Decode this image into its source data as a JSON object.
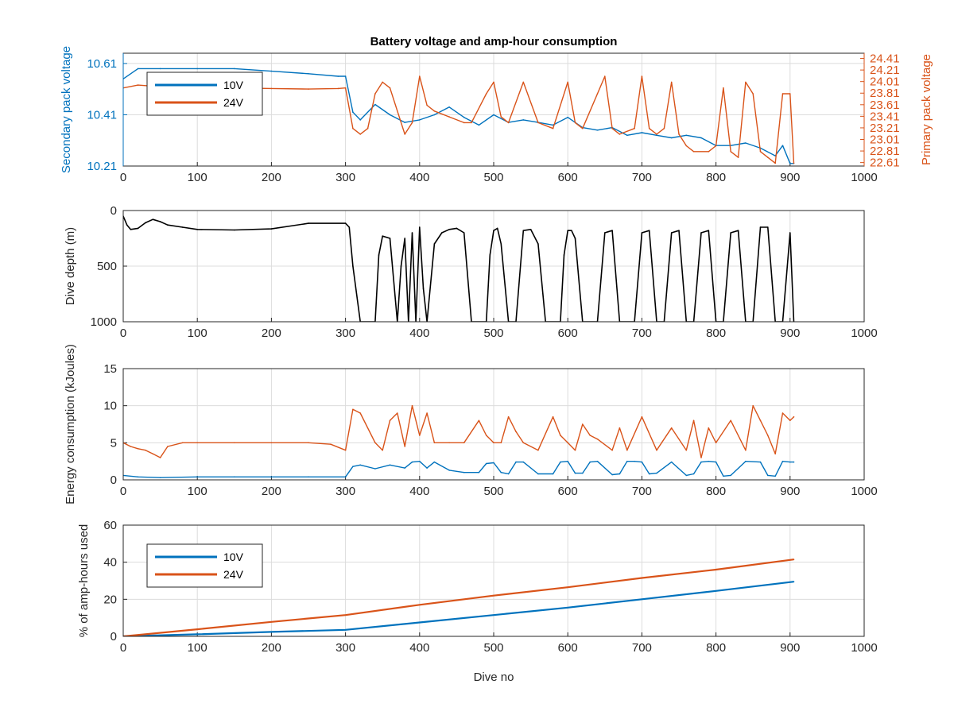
{
  "figure": {
    "title": "Battery voltage and amp-hour consumption",
    "xlabel": "Dive no",
    "background": "#ffffff"
  },
  "colors": {
    "series_10v": "#0072BD",
    "series_24v": "#D95319",
    "depth": "#000000",
    "grid": "#dcdcdc",
    "axis": "#262626",
    "energy_10v": "#0072BD",
    "energy_24v": "#D95319"
  },
  "chart_data": [
    {
      "type": "line",
      "title": "Battery voltage and amp-hour consumption",
      "xlim": [
        0,
        1000
      ],
      "xticks": [
        "0",
        "100",
        "200",
        "300",
        "400",
        "500",
        "600",
        "700",
        "800",
        "900",
        "1000"
      ],
      "ylabel_left": "Secondary pack voltage",
      "ylabel_right": "Primary pack voltage",
      "ylim_left": [
        10.21,
        10.65
      ],
      "ylim_right": [
        22.55,
        24.5
      ],
      "yticks_left": [
        "10.21",
        "10.41",
        "10.61"
      ],
      "yticks_right": [
        "22.61",
        "22.81",
        "23.01",
        "23.21",
        "23.41",
        "23.61",
        "23.81",
        "24.01",
        "24.21",
        "24.41"
      ],
      "legend": [
        "10V",
        "24V"
      ],
      "legend_location": "upper-left",
      "grid": true,
      "series": [
        {
          "name": "10V",
          "axis": "left",
          "x": [
            0,
            20,
            50,
            100,
            150,
            200,
            250,
            290,
            300,
            310,
            320,
            340,
            360,
            380,
            400,
            420,
            440,
            460,
            480,
            500,
            520,
            540,
            560,
            580,
            600,
            620,
            640,
            660,
            680,
            700,
            720,
            740,
            760,
            780,
            800,
            820,
            840,
            860,
            880,
            890,
            900,
            905
          ],
          "y": [
            10.55,
            10.59,
            10.59,
            10.59,
            10.59,
            10.58,
            10.57,
            10.56,
            10.56,
            10.42,
            10.39,
            10.45,
            10.41,
            10.38,
            10.39,
            10.41,
            10.44,
            10.4,
            10.37,
            10.41,
            10.38,
            10.39,
            10.38,
            10.37,
            10.4,
            10.36,
            10.35,
            10.36,
            10.33,
            10.34,
            10.33,
            10.32,
            10.33,
            10.32,
            10.29,
            10.29,
            10.3,
            10.28,
            10.25,
            10.29,
            10.22,
            10.22
          ]
        },
        {
          "name": "24V",
          "axis": "right",
          "x": [
            0,
            20,
            50,
            100,
            150,
            200,
            250,
            290,
            300,
            310,
            320,
            330,
            340,
            350,
            360,
            380,
            390,
            400,
            410,
            420,
            440,
            460,
            470,
            490,
            500,
            510,
            520,
            540,
            560,
            580,
            600,
            610,
            620,
            640,
            650,
            660,
            670,
            690,
            700,
            710,
            720,
            730,
            740,
            750,
            760,
            770,
            790,
            800,
            810,
            820,
            830,
            840,
            850,
            860,
            870,
            880,
            890,
            900,
            905
          ],
          "y": [
            23.9,
            23.95,
            23.92,
            23.91,
            23.9,
            23.89,
            23.88,
            23.89,
            23.9,
            23.2,
            23.1,
            23.2,
            23.8,
            24.0,
            23.9,
            23.1,
            23.3,
            24.1,
            23.6,
            23.5,
            23.4,
            23.3,
            23.3,
            23.8,
            24.0,
            23.4,
            23.3,
            24.0,
            23.3,
            23.2,
            24.0,
            23.3,
            23.2,
            23.8,
            24.1,
            23.2,
            23.1,
            23.2,
            24.1,
            23.2,
            23.1,
            23.2,
            24.0,
            23.1,
            22.9,
            22.8,
            22.8,
            22.9,
            23.9,
            22.8,
            22.7,
            24.0,
            23.8,
            22.8,
            22.7,
            22.6,
            23.8,
            23.8,
            22.6
          ]
        }
      ]
    },
    {
      "type": "line",
      "xlim": [
        0,
        1000
      ],
      "xticks": [
        "0",
        "100",
        "200",
        "300",
        "400",
        "500",
        "600",
        "700",
        "800",
        "900",
        "1000"
      ],
      "ylabel": "Dive depth (m)",
      "ylim": [
        0,
        1000
      ],
      "y_reversed": true,
      "yticks": [
        "0",
        "500",
        "1000"
      ],
      "grid": true,
      "series": [
        {
          "x": [
            0,
            5,
            10,
            20,
            30,
            40,
            50,
            60,
            80,
            100,
            150,
            200,
            250,
            300,
            305,
            310,
            320,
            340,
            345,
            350,
            360,
            370,
            375,
            380,
            385,
            390,
            395,
            400,
            405,
            410,
            420,
            430,
            440,
            450,
            460,
            470,
            490,
            495,
            500,
            505,
            510,
            520,
            530,
            540,
            550,
            560,
            570,
            590,
            595,
            600,
            605,
            610,
            620,
            640,
            650,
            660,
            670,
            690,
            700,
            710,
            720,
            730,
            740,
            750,
            760,
            770,
            780,
            790,
            800,
            810,
            820,
            830,
            840,
            850,
            860,
            870,
            880,
            890,
            900,
            905
          ],
          "y": [
            50,
            130,
            170,
            160,
            110,
            80,
            100,
            130,
            150,
            170,
            175,
            165,
            115,
            115,
            150,
            500,
            1000,
            1000,
            400,
            230,
            250,
            1000,
            500,
            250,
            1000,
            200,
            1000,
            150,
            700,
            1000,
            300,
            200,
            170,
            160,
            200,
            1000,
            1000,
            400,
            180,
            160,
            300,
            1000,
            1000,
            180,
            170,
            300,
            1000,
            1000,
            400,
            180,
            180,
            250,
            1000,
            1000,
            200,
            180,
            1000,
            1000,
            200,
            180,
            1000,
            1000,
            200,
            180,
            1000,
            1000,
            200,
            180,
            1000,
            1000,
            200,
            180,
            1000,
            1000,
            150,
            150,
            1000,
            1000,
            200,
            1000
          ]
        }
      ]
    },
    {
      "type": "line",
      "xlim": [
        0,
        1000
      ],
      "xticks": [
        "0",
        "100",
        "200",
        "300",
        "400",
        "500",
        "600",
        "700",
        "800",
        "900",
        "1000"
      ],
      "ylabel": "Energy consumption (kJoules)",
      "ylim": [
        0,
        15
      ],
      "yticks": [
        "0",
        "5",
        "10",
        "15"
      ],
      "grid": true,
      "series": [
        {
          "name": "10V",
          "x": [
            0,
            20,
            50,
            100,
            150,
            200,
            250,
            300,
            310,
            320,
            340,
            360,
            380,
            390,
            400,
            410,
            420,
            440,
            460,
            480,
            490,
            500,
            510,
            520,
            530,
            540,
            560,
            580,
            590,
            600,
            610,
            620,
            630,
            640,
            660,
            670,
            680,
            690,
            700,
            710,
            720,
            740,
            760,
            770,
            780,
            790,
            800,
            810,
            820,
            840,
            860,
            870,
            880,
            890,
            900,
            905
          ],
          "y": [
            0.6,
            0.4,
            0.3,
            0.4,
            0.4,
            0.4,
            0.4,
            0.4,
            1.8,
            2.0,
            1.5,
            2.0,
            1.6,
            2.4,
            2.5,
            1.6,
            2.4,
            1.3,
            1.0,
            1.0,
            2.2,
            2.3,
            1.0,
            0.8,
            2.4,
            2.4,
            0.8,
            0.8,
            2.4,
            2.5,
            0.9,
            0.9,
            2.4,
            2.5,
            0.7,
            0.8,
            2.5,
            2.5,
            2.4,
            0.8,
            0.9,
            2.4,
            0.6,
            0.8,
            2.4,
            2.5,
            2.4,
            0.5,
            0.6,
            2.5,
            2.4,
            0.6,
            0.5,
            2.5,
            2.4,
            2.4
          ]
        },
        {
          "name": "24V",
          "x": [
            0,
            10,
            20,
            30,
            40,
            50,
            60,
            80,
            100,
            150,
            200,
            250,
            280,
            300,
            310,
            320,
            340,
            350,
            360,
            370,
            380,
            390,
            400,
            410,
            420,
            440,
            460,
            480,
            490,
            500,
            510,
            520,
            530,
            540,
            560,
            580,
            590,
            600,
            610,
            620,
            630,
            640,
            660,
            670,
            680,
            700,
            720,
            740,
            760,
            770,
            780,
            790,
            800,
            820,
            840,
            850,
            860,
            870,
            880,
            890,
            900,
            905
          ],
          "y": [
            5.0,
            4.5,
            4.2,
            4.0,
            3.5,
            3.0,
            4.5,
            5.0,
            5.0,
            5.0,
            5.0,
            5.0,
            4.8,
            4.0,
            9.5,
            9.0,
            5.0,
            4.0,
            8.0,
            9.0,
            4.5,
            10.0,
            6.0,
            9.0,
            5.0,
            5.0,
            5.0,
            8.0,
            6.0,
            5.0,
            5.0,
            8.5,
            6.5,
            5.0,
            4.0,
            8.5,
            6.0,
            5.0,
            4.0,
            7.5,
            6.0,
            5.5,
            4.0,
            7.0,
            4.0,
            8.5,
            4.0,
            7.0,
            4.0,
            8.0,
            3.0,
            7.0,
            5.0,
            8.0,
            4.0,
            10.0,
            8.0,
            6.0,
            3.5,
            9.0,
            8.0,
            8.5
          ]
        }
      ]
    },
    {
      "type": "line",
      "xlim": [
        0,
        1000
      ],
      "xticks": [
        "0",
        "100",
        "200",
        "300",
        "400",
        "500",
        "600",
        "700",
        "800",
        "900",
        "1000"
      ],
      "xlabel": "Dive no",
      "ylabel": "% of amp-hours used",
      "ylim": [
        0,
        60
      ],
      "yticks": [
        "0",
        "20",
        "40",
        "60"
      ],
      "legend": [
        "10V",
        "24V"
      ],
      "legend_location": "upper-left",
      "grid": true,
      "series": [
        {
          "name": "10V",
          "x": [
            0,
            100,
            200,
            300,
            400,
            500,
            600,
            700,
            800,
            905
          ],
          "y": [
            0,
            1.1,
            2.4,
            3.5,
            7.5,
            11.5,
            15.5,
            20.0,
            24.5,
            29.5
          ]
        },
        {
          "name": "24V",
          "x": [
            0,
            100,
            200,
            300,
            400,
            500,
            600,
            700,
            800,
            905
          ],
          "y": [
            0,
            3.8,
            7.8,
            11.5,
            17.0,
            22.0,
            26.5,
            31.5,
            36.0,
            41.5
          ]
        }
      ]
    }
  ]
}
